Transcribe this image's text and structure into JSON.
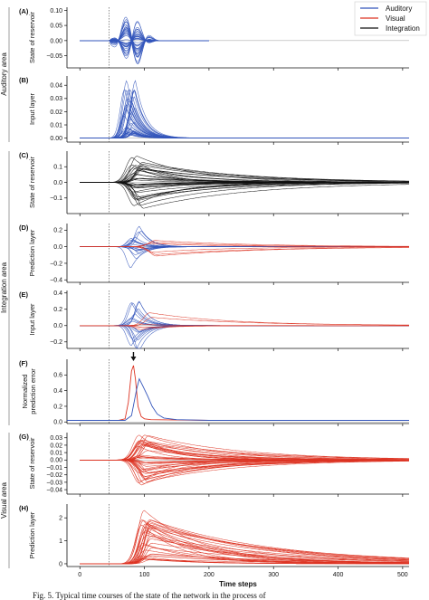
{
  "colors": {
    "auditory": "#3355bb",
    "visual": "#dd3322",
    "integration": "#111111"
  },
  "legend": [
    {
      "label": "Auditory",
      "color": "#3355bb"
    },
    {
      "label": "Visual",
      "color": "#dd3322"
    },
    {
      "label": "Integration",
      "color": "#111111"
    }
  ],
  "area_labels": [
    "Auditory area",
    "Integration area",
    "Visual area"
  ],
  "caption": "Fig. 5. Typical time courses of the state of the network in the process of",
  "arrow_icon": "down-arrow-icon",
  "chart_data": [
    {
      "type": "line",
      "panel": "(A)",
      "ylabel": "State of reservoir",
      "xlim": [
        -20,
        510
      ],
      "ylim": [
        -0.09,
        0.11
      ],
      "yticks": [
        -0.05,
        0.0,
        0.05,
        0.1
      ],
      "ytick_labels": [
        "−0.05",
        "0.00",
        "0.05",
        "0.10"
      ],
      "xticks": [
        0,
        100,
        200,
        300,
        400,
        500
      ],
      "show_xtick_labels": false,
      "stimulus_onset": 45,
      "series": [
        {
          "group": "auditory",
          "count": 40,
          "peak_time": 80,
          "amplitude": 0.09,
          "sign": "both",
          "shape": "oscillatory",
          "end": 200
        }
      ]
    },
    {
      "type": "line",
      "panel": "(B)",
      "ylabel": "Input layer",
      "xlim": [
        -20,
        510
      ],
      "ylim": [
        -0.003,
        0.047
      ],
      "yticks": [
        0.0,
        0.01,
        0.02,
        0.03,
        0.04
      ],
      "ytick_labels": [
        "0.00",
        "0.01",
        "0.02",
        "0.03",
        "0.04"
      ],
      "xticks": [
        0,
        100,
        200,
        300,
        400,
        500
      ],
      "show_xtick_labels": false,
      "stimulus_onset": 45,
      "series": [
        {
          "group": "auditory",
          "count": 40,
          "peak_time": 78,
          "amplitude": 0.044,
          "sign": "positive",
          "shape": "pulse",
          "end": 510
        }
      ]
    },
    {
      "type": "line",
      "panel": "(C)",
      "ylabel": "State of reservoir",
      "xlim": [
        -20,
        510
      ],
      "ylim": [
        -0.2,
        0.2
      ],
      "yticks": [
        -0.1,
        0.0,
        0.1
      ],
      "ytick_labels": [
        "−0.1",
        "0.0",
        "0.1"
      ],
      "xticks": [
        0,
        100,
        200,
        300,
        400,
        500
      ],
      "show_xtick_labels": false,
      "stimulus_onset": 45,
      "series": [
        {
          "group": "integration",
          "count": 36,
          "peak_time": 90,
          "amplitude": 0.17,
          "sign": "both",
          "shape": "decay",
          "end": 510
        }
      ]
    },
    {
      "type": "line",
      "panel": "(D)",
      "ylabel": "Prediction layer",
      "xlim": [
        -20,
        510
      ],
      "ylim": [
        -0.43,
        0.28
      ],
      "yticks": [
        -0.4,
        -0.2,
        0.0,
        0.2
      ],
      "ytick_labels": [
        "−0.4",
        "−0.2",
        "0.0",
        "0.2"
      ],
      "xticks": [
        0,
        100,
        200,
        300,
        400,
        500
      ],
      "show_xtick_labels": false,
      "stimulus_onset": 45,
      "series": [
        {
          "group": "auditory",
          "count": 18,
          "peak_time": 87,
          "amplitude": 0.26,
          "sign": "both",
          "shape": "pulse",
          "end": 510
        },
        {
          "group": "visual",
          "count": 6,
          "peak_time": 110,
          "amplitude": 0.12,
          "sign": "both",
          "shape": "decay",
          "end": 510
        }
      ]
    },
    {
      "type": "line",
      "panel": "(E)",
      "ylabel": "Input layer",
      "xlim": [
        -20,
        510
      ],
      "ylim": [
        -0.28,
        0.43
      ],
      "yticks": [
        -0.2,
        0.0,
        0.2,
        0.4
      ],
      "ytick_labels": [
        "−0.2",
        "0.0",
        "0.2",
        "0.4"
      ],
      "xticks": [
        0,
        100,
        200,
        300,
        400,
        500
      ],
      "show_xtick_labels": false,
      "stimulus_onset": 45,
      "series": [
        {
          "group": "auditory",
          "count": 18,
          "peak_time": 87,
          "amplitude": 0.34,
          "sign": "both",
          "shape": "pulse",
          "end": 510
        },
        {
          "group": "visual",
          "count": 6,
          "peak_time": 105,
          "amplitude": 0.17,
          "sign": "both",
          "shape": "decay",
          "end": 510
        }
      ]
    },
    {
      "type": "line",
      "panel": "(F)",
      "ylabel": "Normalized prediction error",
      "xlim": [
        -20,
        510
      ],
      "ylim": [
        -0.02,
        0.8
      ],
      "yticks": [
        0.0,
        0.2,
        0.4,
        0.6
      ],
      "ytick_labels": [
        "0.0",
        "0.2",
        "0.4",
        "0.6"
      ],
      "xticks": [
        0,
        100,
        200,
        300,
        400,
        500
      ],
      "show_xtick_labels": false,
      "stimulus_onset": 45,
      "arrow_time": 83,
      "series": [
        {
          "group": "visual",
          "name": "visual error",
          "baseline": 0.02,
          "points": [
            [
              -20,
              0.02
            ],
            [
              60,
              0.02
            ],
            [
              70,
              0.04
            ],
            [
              75,
              0.25
            ],
            [
              80,
              0.65
            ],
            [
              83,
              0.72
            ],
            [
              86,
              0.55
            ],
            [
              90,
              0.2
            ],
            [
              95,
              0.07
            ],
            [
              100,
              0.04
            ],
            [
              110,
              0.03
            ],
            [
              150,
              0.025
            ],
            [
              200,
              0.02
            ],
            [
              510,
              0.02
            ]
          ]
        },
        {
          "group": "auditory",
          "name": "auditory error",
          "baseline": 0.02,
          "points": [
            [
              -20,
              0.02
            ],
            [
              70,
              0.02
            ],
            [
              80,
              0.08
            ],
            [
              88,
              0.42
            ],
            [
              92,
              0.55
            ],
            [
              98,
              0.45
            ],
            [
              105,
              0.33
            ],
            [
              112,
              0.2
            ],
            [
              120,
              0.1
            ],
            [
              130,
              0.05
            ],
            [
              150,
              0.03
            ],
            [
              200,
              0.02
            ],
            [
              510,
              0.02
            ]
          ]
        }
      ]
    },
    {
      "type": "line",
      "panel": "(G)",
      "ylabel": "State of reservoir",
      "xlim": [
        -20,
        510
      ],
      "ylim": [
        -0.046,
        0.037
      ],
      "yticks": [
        -0.04,
        -0.02,
        0.0,
        0.02
      ],
      "ytick_labels": [
        "−0.04",
        "−0.02",
        "0.00",
        "0.02"
      ],
      "extra_yticks": [
        -0.03,
        -0.01,
        0.01,
        0.03
      ],
      "extra_ytick_labels": [
        "−0.03",
        "−0.01",
        "0.01",
        "0.03"
      ],
      "xticks": [
        0,
        100,
        200,
        300,
        400,
        500
      ],
      "show_xtick_labels": false,
      "stimulus_onset": 45,
      "series": [
        {
          "group": "visual",
          "count": 44,
          "peak_time": 100,
          "amplitude": 0.036,
          "sign": "both",
          "shape": "decay",
          "end": 510
        }
      ]
    },
    {
      "type": "line",
      "panel": "(H)",
      "ylabel": "Prediction layer",
      "xlim": [
        -20,
        510
      ],
      "ylim": [
        -0.12,
        2.6
      ],
      "yticks": [
        0,
        1,
        2
      ],
      "ytick_labels": [
        "0",
        "1",
        "2"
      ],
      "xticks": [
        0,
        100,
        200,
        300,
        400,
        500
      ],
      "show_xtick_labels": true,
      "xtick_labels": [
        "0",
        "100",
        "200",
        "300",
        "400",
        "500"
      ],
      "xlabel": "Time steps",
      "stimulus_onset": 45,
      "series": [
        {
          "group": "visual",
          "count": 34,
          "peak_time": 105,
          "amplitude": 2.35,
          "sign": "positive",
          "shape": "slowdecay",
          "end": 510
        }
      ]
    }
  ]
}
